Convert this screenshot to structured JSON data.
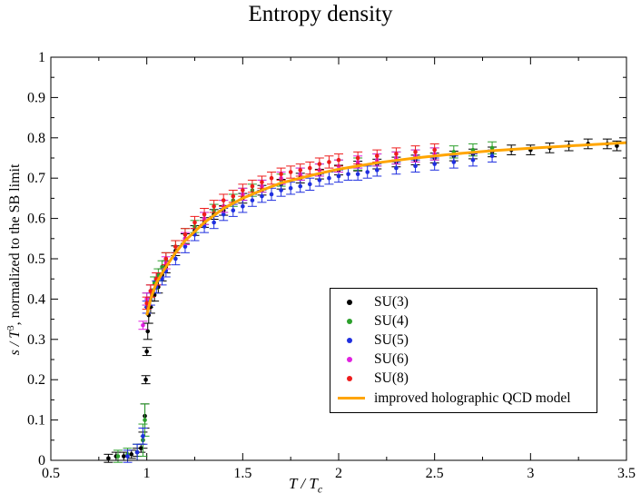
{
  "chart_data": {
    "type": "scatter",
    "title": "Entropy density",
    "xlabel": "T / Tc",
    "ylabel": "s / T³, normalized to the SB limit",
    "xlabel_main": "T / T",
    "xlabel_sub": "c",
    "ylabel_pre": "s / T",
    "ylabel_sup": "3",
    "ylabel_post": ", normalized to the SB limit",
    "xlim": [
      0.5,
      3.5
    ],
    "ylim": [
      0,
      1
    ],
    "xticks": [
      "0.5",
      "1",
      "1.5",
      "2",
      "2.5",
      "3",
      "3.5"
    ],
    "yticks": [
      "0",
      "0.1",
      "0.2",
      "0.3",
      "0.4",
      "0.5",
      "0.6",
      "0.7",
      "0.8",
      "0.9",
      "1"
    ],
    "legend_position": "lower-right",
    "series": [
      {
        "name": "SU(3)",
        "color": "#000000",
        "marker": "dot",
        "x": [
          0.8,
          0.84,
          0.88,
          0.92,
          0.95,
          0.97,
          0.98,
          0.99,
          0.995,
          1.0,
          1.005,
          1.01,
          1.02,
          1.04,
          1.06,
          1.08,
          1.1,
          1.15,
          1.2,
          1.25,
          1.3,
          1.35,
          1.4,
          1.5,
          1.6,
          1.7,
          1.8,
          1.9,
          2.0,
          2.1,
          2.2,
          2.3,
          2.4,
          2.5,
          2.6,
          2.7,
          2.8,
          2.9,
          3.0,
          3.1,
          3.2,
          3.3,
          3.4,
          3.45
        ],
        "y": [
          0.005,
          0.01,
          0.01,
          0.015,
          0.02,
          0.03,
          0.05,
          0.11,
          0.2,
          0.27,
          0.32,
          0.36,
          0.38,
          0.41,
          0.43,
          0.46,
          0.48,
          0.52,
          0.55,
          0.57,
          0.59,
          0.61,
          0.62,
          0.65,
          0.67,
          0.685,
          0.7,
          0.71,
          0.72,
          0.73,
          0.735,
          0.74,
          0.745,
          0.75,
          0.755,
          0.76,
          0.765,
          0.77,
          0.77,
          0.775,
          0.78,
          0.785,
          0.785,
          0.78
        ],
        "err": [
          0.01,
          0.01,
          0.01,
          0.01,
          0.01,
          0.01,
          0.02,
          0.03,
          0.01,
          0.01,
          0.02,
          0.02,
          0.015,
          0.015,
          0.015,
          0.015,
          0.015,
          0.012,
          0.012,
          0.012,
          0.012,
          0.012,
          0.012,
          0.012,
          0.012,
          0.012,
          0.012,
          0.012,
          0.012,
          0.012,
          0.012,
          0.012,
          0.012,
          0.012,
          0.012,
          0.012,
          0.012,
          0.012,
          0.012,
          0.012,
          0.012,
          0.012,
          0.012,
          0.012
        ]
      },
      {
        "name": "SU(4)",
        "color": "#2ca02c",
        "marker": "dot",
        "x": [
          0.85,
          0.9,
          0.95,
          0.98,
          0.99,
          1.0,
          1.02,
          1.04,
          1.06,
          1.08,
          1.1,
          1.15,
          1.2,
          1.25,
          1.3,
          1.35,
          1.4,
          1.45,
          1.5,
          1.55,
          1.6,
          1.7,
          1.8,
          1.9,
          2.0,
          2.1,
          2.2,
          2.3,
          2.4,
          2.5,
          2.6,
          2.7,
          2.8
        ],
        "y": [
          0.01,
          0.015,
          0.02,
          0.05,
          0.1,
          0.4,
          0.42,
          0.44,
          0.46,
          0.48,
          0.5,
          0.53,
          0.56,
          0.58,
          0.6,
          0.62,
          0.63,
          0.645,
          0.66,
          0.67,
          0.68,
          0.695,
          0.71,
          0.72,
          0.73,
          0.735,
          0.745,
          0.75,
          0.755,
          0.76,
          0.765,
          0.77,
          0.775
        ],
        "err": [
          0.015,
          0.015,
          0.02,
          0.04,
          0.04,
          0.015,
          0.015,
          0.015,
          0.015,
          0.015,
          0.015,
          0.015,
          0.015,
          0.015,
          0.015,
          0.015,
          0.015,
          0.015,
          0.015,
          0.015,
          0.015,
          0.015,
          0.015,
          0.015,
          0.015,
          0.015,
          0.015,
          0.015,
          0.015,
          0.015,
          0.015,
          0.015,
          0.015
        ]
      },
      {
        "name": "SU(5)",
        "color": "#1f2fdf",
        "marker": "dot",
        "x": [
          0.9,
          0.95,
          0.98,
          1.0,
          1.02,
          1.05,
          1.08,
          1.1,
          1.15,
          1.2,
          1.25,
          1.3,
          1.35,
          1.4,
          1.45,
          1.5,
          1.55,
          1.6,
          1.65,
          1.7,
          1.75,
          1.8,
          1.85,
          1.9,
          1.95,
          2.0,
          2.05,
          2.1,
          2.15,
          2.2,
          2.3,
          2.4,
          2.5,
          2.6,
          2.7,
          2.8
        ],
        "y": [
          0.01,
          0.02,
          0.06,
          0.38,
          0.4,
          0.43,
          0.45,
          0.47,
          0.5,
          0.53,
          0.56,
          0.58,
          0.59,
          0.61,
          0.62,
          0.63,
          0.645,
          0.655,
          0.66,
          0.67,
          0.675,
          0.68,
          0.685,
          0.695,
          0.7,
          0.705,
          0.71,
          0.71,
          0.715,
          0.72,
          0.725,
          0.73,
          0.735,
          0.74,
          0.745,
          0.755
        ],
        "err": [
          0.015,
          0.02,
          0.02,
          0.015,
          0.015,
          0.015,
          0.015,
          0.015,
          0.015,
          0.015,
          0.015,
          0.015,
          0.015,
          0.015,
          0.015,
          0.015,
          0.015,
          0.015,
          0.015,
          0.015,
          0.015,
          0.015,
          0.015,
          0.015,
          0.015,
          0.015,
          0.015,
          0.015,
          0.015,
          0.015,
          0.015,
          0.015,
          0.015,
          0.015,
          0.015,
          0.015
        ]
      },
      {
        "name": "SU(6)",
        "color": "#e020e0",
        "marker": "dot",
        "x": [
          0.98,
          1.0,
          1.02,
          1.05,
          1.1,
          1.2,
          1.3,
          1.4,
          1.5,
          1.6,
          1.7,
          1.8,
          1.9,
          2.0,
          2.1,
          2.2,
          2.3,
          2.4,
          2.5
        ],
        "y": [
          0.335,
          0.4,
          0.42,
          0.45,
          0.49,
          0.55,
          0.6,
          0.63,
          0.66,
          0.68,
          0.7,
          0.71,
          0.72,
          0.73,
          0.74,
          0.745,
          0.75,
          0.755,
          0.76
        ],
        "err": [
          0.01,
          0.015,
          0.015,
          0.015,
          0.015,
          0.015,
          0.015,
          0.015,
          0.015,
          0.015,
          0.015,
          0.015,
          0.015,
          0.015,
          0.015,
          0.015,
          0.015,
          0.015,
          0.015
        ]
      },
      {
        "name": "SU(8)",
        "color": "#ee1c1c",
        "marker": "dot",
        "x": [
          1.0,
          1.02,
          1.05,
          1.1,
          1.15,
          1.2,
          1.25,
          1.3,
          1.35,
          1.4,
          1.45,
          1.5,
          1.55,
          1.6,
          1.65,
          1.7,
          1.75,
          1.8,
          1.85,
          1.9,
          1.95,
          2.0,
          2.1,
          2.2,
          2.3,
          2.4,
          2.5
        ],
        "y": [
          0.39,
          0.42,
          0.45,
          0.5,
          0.53,
          0.56,
          0.59,
          0.61,
          0.63,
          0.645,
          0.655,
          0.67,
          0.68,
          0.69,
          0.7,
          0.71,
          0.715,
          0.72,
          0.725,
          0.735,
          0.74,
          0.745,
          0.75,
          0.755,
          0.76,
          0.765,
          0.77
        ],
        "err": [
          0.015,
          0.015,
          0.015,
          0.015,
          0.015,
          0.015,
          0.015,
          0.015,
          0.015,
          0.015,
          0.015,
          0.015,
          0.015,
          0.015,
          0.015,
          0.015,
          0.015,
          0.015,
          0.015,
          0.015,
          0.015,
          0.015,
          0.015,
          0.015,
          0.015,
          0.015,
          0.015
        ]
      },
      {
        "name": "improved holographic QCD model",
        "color": "#ffa500",
        "marker": "line",
        "x": [
          1.0,
          1.02,
          1.05,
          1.1,
          1.15,
          1.2,
          1.3,
          1.4,
          1.5,
          1.6,
          1.7,
          1.8,
          1.9,
          2.0,
          2.2,
          2.4,
          2.6,
          2.8,
          3.0,
          3.2,
          3.5
        ],
        "y": [
          0.36,
          0.4,
          0.44,
          0.48,
          0.515,
          0.545,
          0.59,
          0.625,
          0.65,
          0.67,
          0.688,
          0.7,
          0.712,
          0.722,
          0.738,
          0.75,
          0.76,
          0.768,
          0.774,
          0.78,
          0.788
        ]
      }
    ]
  }
}
